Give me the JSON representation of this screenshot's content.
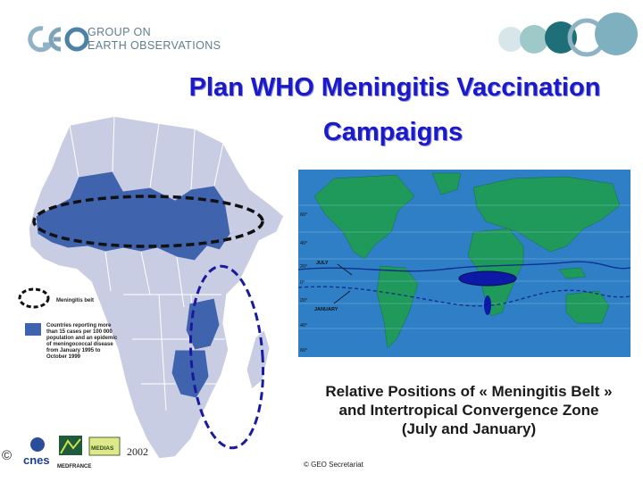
{
  "header": {
    "org_line1": "GROUP ON",
    "org_line2": "EARTH OBSERVATIONS"
  },
  "title": {
    "line1": "Plan WHO Meningitis Vaccination",
    "line2": "Campaigns"
  },
  "legend": {
    "belt_label": "Meningitis belt",
    "countries_label": "Countries reporting more than 15 cases per 100 000 population and an epidemic of meningococcal disease from January 1995 to October 1999"
  },
  "world_map": {
    "lat_labels": [
      "60°",
      "40°",
      "20°",
      "0°",
      "20°",
      "40°",
      "60°"
    ],
    "july_label": "JULY",
    "january_label": "JANUARY"
  },
  "caption": {
    "line1": "Relative Positions of « Meningitis Belt »",
    "line2": "and Intertropical Convergence Zone",
    "line3": "(July and January)"
  },
  "footer": {
    "copyright_symbol": "©",
    "logo_cnes": "cnes",
    "logo_medias": "MEDIAS",
    "logo_mediterranee": "MEDFRANCE",
    "year": "2002",
    "geo_copyright": "© GEO Secretariat"
  },
  "colors": {
    "title": "#1a1ac8",
    "map_gray": "#c9cde4",
    "map_blue": "#3f63ad",
    "ocean": "#2f7fc6",
    "land": "#1f9a5a"
  }
}
